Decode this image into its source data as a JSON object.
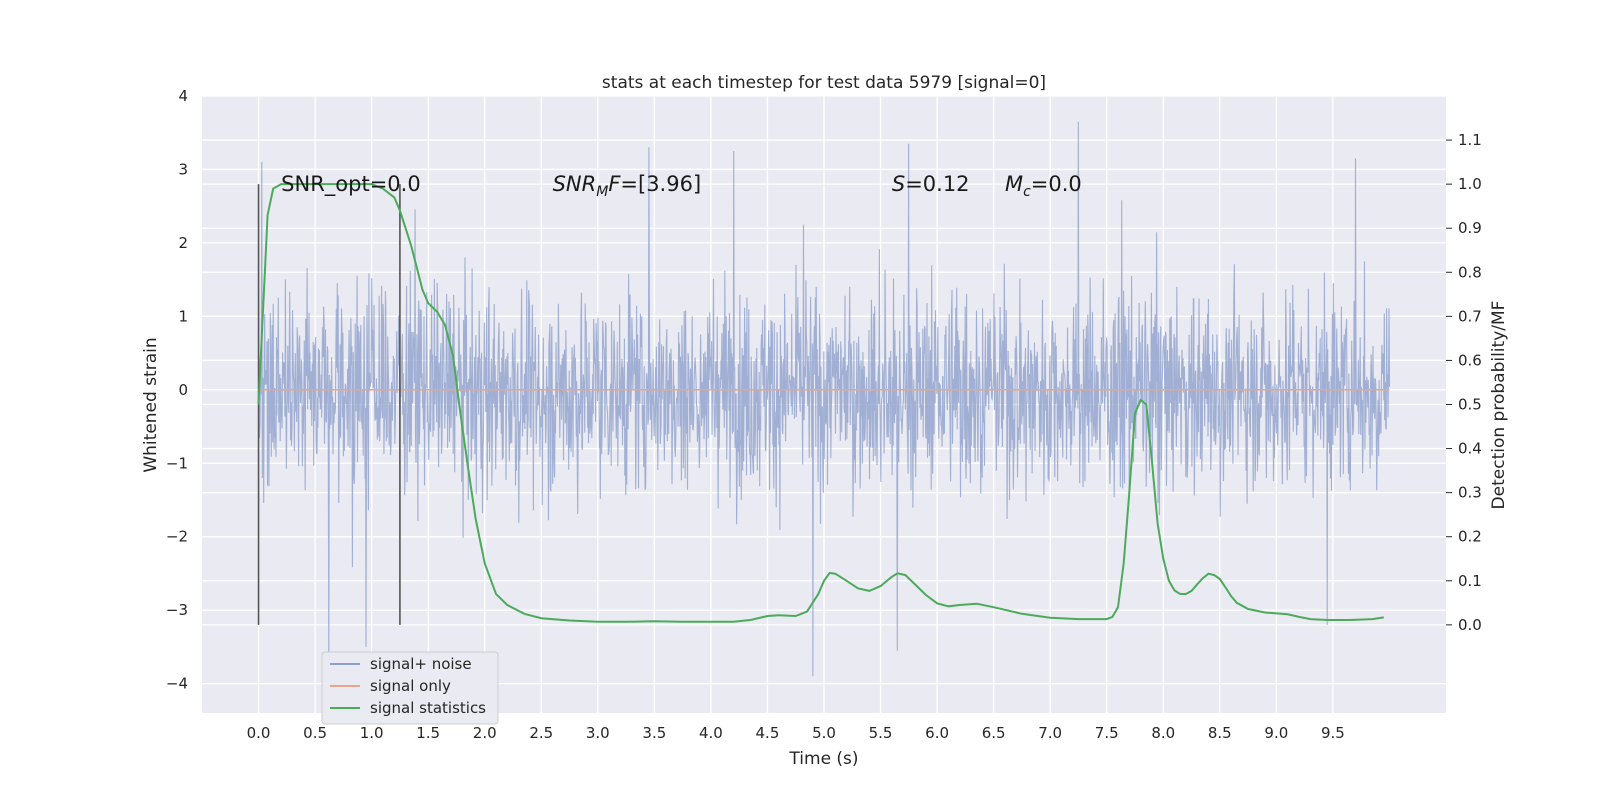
{
  "chart_data": {
    "type": "line",
    "title": "stats at each timestep for test data 5979 [signal=0]",
    "xlabel": "Time (s)",
    "ylabel": "Whitened strain",
    "y2label": "Detection probability/MF",
    "xlim": [
      -0.5,
      10.5
    ],
    "ylim": [
      -4.4,
      4.0
    ],
    "y2lim": [
      -0.2,
      1.2
    ],
    "xticks": [
      0.0,
      0.5,
      1.0,
      1.5,
      2.0,
      2.5,
      3.0,
      3.5,
      4.0,
      4.5,
      5.0,
      5.5,
      6.0,
      6.5,
      7.0,
      7.5,
      8.0,
      8.5,
      9.0,
      9.5
    ],
    "xtick_labels": [
      "0.0",
      "0.5",
      "1.0",
      "1.5",
      "2.0",
      "2.5",
      "3.0",
      "3.5",
      "4.0",
      "4.5",
      "5.0",
      "5.5",
      "6.0",
      "6.5",
      "7.0",
      "7.5",
      "8.0",
      "8.5",
      "9.0",
      "9.5"
    ],
    "yticks": [
      4,
      3,
      2,
      1,
      0,
      -1,
      -2,
      -3,
      -4
    ],
    "ytick_labels": [
      "4",
      "3",
      "2",
      "1",
      "0",
      "−1",
      "−2",
      "−3",
      "−4"
    ],
    "y2ticks": [
      1.1,
      1.0,
      0.9,
      0.8,
      0.7,
      0.6,
      0.5,
      0.4,
      0.3,
      0.2,
      0.1,
      0.0
    ],
    "y2tick_labels": [
      "1.1",
      "1.0",
      "0.9",
      "0.8",
      "0.7",
      "0.6",
      "0.5",
      "0.4",
      "0.3",
      "0.2",
      "0.1",
      "0.0"
    ],
    "grid": true,
    "legend": {
      "placement": "lower-left",
      "entries": [
        {
          "name": "signal+ noise",
          "color": "#8da0cb"
        },
        {
          "name": "signal only",
          "color": "#e8a58d"
        },
        {
          "name": "signal statistics",
          "color": "#4caa5b"
        }
      ]
    },
    "annotations": [
      {
        "id": "snr-opt",
        "text": "SNR_opt=0.0",
        "x": 0.2,
        "y": 2.8
      },
      {
        "id": "snr-mf",
        "text": "SNR",
        "sub": "M",
        "rest": "F=[3.96]",
        "italic_prefix": true,
        "x": 2.6,
        "y": 2.8
      },
      {
        "id": "s-value",
        "text": "S",
        "rest": "=0.12",
        "x": 5.6,
        "y": 2.8
      },
      {
        "id": "mc-value",
        "text": "M",
        "sub": "c",
        "rest": "=0.0",
        "x": 6.6,
        "y": 2.8
      }
    ],
    "vertical_lines": [
      {
        "x": 0.0,
        "ymin": -3.2,
        "ymax": 2.8
      },
      {
        "x": 1.25,
        "ymin": -3.2,
        "ymax": 2.8
      }
    ],
    "noise_series": {
      "name": "signal+ noise",
      "x_start": 0.0,
      "x_end": 10.0,
      "typical_range": [
        -1.5,
        1.6
      ],
      "extreme_peaks": [
        {
          "x": 0.62,
          "y": -3.7
        },
        {
          "x": 0.95,
          "y": -3.5
        },
        {
          "x": 3.45,
          "y": 3.3
        },
        {
          "x": 4.2,
          "y": 3.25
        },
        {
          "x": 4.9,
          "y": -3.9
        },
        {
          "x": 5.75,
          "y": 3.35
        },
        {
          "x": 5.65,
          "y": -3.55
        },
        {
          "x": 7.25,
          "y": 3.65
        },
        {
          "x": 9.7,
          "y": 3.15
        },
        {
          "x": 9.45,
          "y": -3.2
        }
      ]
    },
    "signal_only": {
      "name": "signal only",
      "y": 0.0,
      "x_range": [
        0.0,
        10.0
      ]
    },
    "statistics_series": {
      "name": "signal statistics",
      "axis": "right",
      "x": [
        0.0,
        0.08,
        0.13,
        0.2,
        0.3,
        0.5,
        0.8,
        1.0,
        1.1,
        1.2,
        1.25,
        1.3,
        1.35,
        1.4,
        1.45,
        1.5,
        1.58,
        1.65,
        1.72,
        1.78,
        1.85,
        1.92,
        2.0,
        2.1,
        2.2,
        2.35,
        2.5,
        2.75,
        3.0,
        3.25,
        3.5,
        3.75,
        4.0,
        4.2,
        4.35,
        4.5,
        4.6,
        4.75,
        4.85,
        4.95,
        5.0,
        5.05,
        5.1,
        5.2,
        5.3,
        5.4,
        5.5,
        5.6,
        5.65,
        5.72,
        5.8,
        5.9,
        6.0,
        6.1,
        6.2,
        6.35,
        6.5,
        6.75,
        7.0,
        7.25,
        7.4,
        7.5,
        7.55,
        7.6,
        7.65,
        7.7,
        7.75,
        7.8,
        7.85,
        7.9,
        7.95,
        8.0,
        8.05,
        8.1,
        8.15,
        8.2,
        8.25,
        8.3,
        8.35,
        8.4,
        8.45,
        8.5,
        8.55,
        8.6,
        8.65,
        8.75,
        8.9,
        9.0,
        9.1,
        9.2,
        9.3,
        9.45,
        9.65,
        9.85,
        9.95
      ],
      "y": [
        0.5,
        0.93,
        0.99,
        1.0,
        1.0,
        1.0,
        1.0,
        1.0,
        0.99,
        0.97,
        0.94,
        0.9,
        0.86,
        0.81,
        0.76,
        0.73,
        0.71,
        0.68,
        0.61,
        0.49,
        0.36,
        0.24,
        0.14,
        0.07,
        0.045,
        0.025,
        0.015,
        0.01,
        0.007,
        0.007,
        0.008,
        0.007,
        0.007,
        0.007,
        0.011,
        0.02,
        0.022,
        0.02,
        0.03,
        0.07,
        0.1,
        0.118,
        0.116,
        0.1,
        0.083,
        0.077,
        0.088,
        0.109,
        0.117,
        0.113,
        0.093,
        0.068,
        0.049,
        0.042,
        0.045,
        0.048,
        0.04,
        0.025,
        0.016,
        0.013,
        0.013,
        0.013,
        0.018,
        0.04,
        0.14,
        0.3,
        0.48,
        0.51,
        0.5,
        0.37,
        0.23,
        0.15,
        0.1,
        0.078,
        0.07,
        0.07,
        0.077,
        0.092,
        0.106,
        0.116,
        0.113,
        0.104,
        0.085,
        0.065,
        0.05,
        0.036,
        0.028,
        0.026,
        0.024,
        0.018,
        0.013,
        0.011,
        0.011,
        0.013,
        0.017
      ]
    }
  }
}
